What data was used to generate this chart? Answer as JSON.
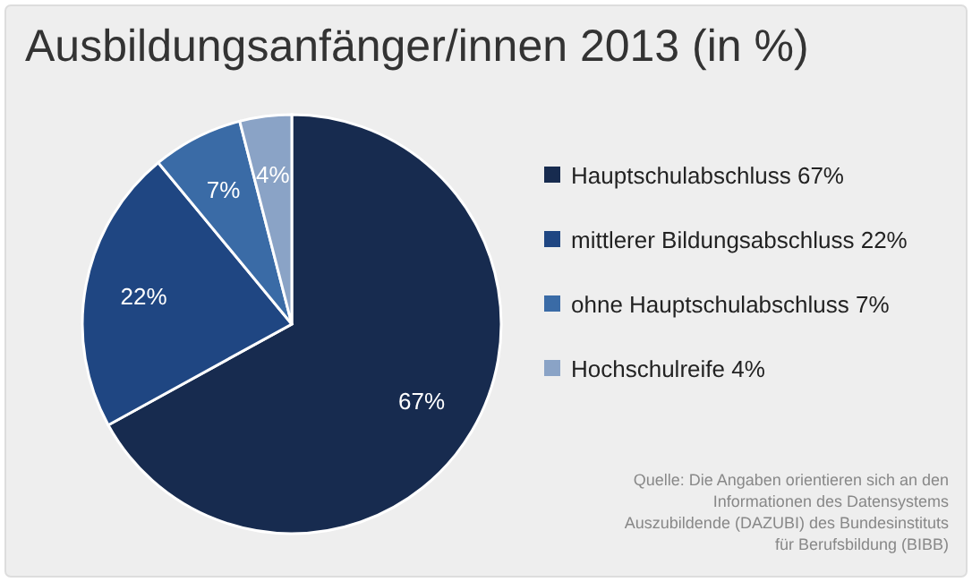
{
  "chart_data": {
    "type": "pie",
    "title": "Ausbildungsanfänger/innen 2013 (in %)",
    "categories": [
      "Hauptschulabschluss 67%",
      "mittlerer Bildungsabschluss 22%",
      "ohne Hauptschulabschluss 7%",
      "Hochschulreife 4%"
    ],
    "values": [
      67,
      22,
      7,
      4
    ],
    "colors": [
      "#172b4f",
      "#1f4682",
      "#3a6ba6",
      "#8aa3c6"
    ],
    "value_labels": [
      "67%",
      "22%",
      "7%",
      "4%"
    ],
    "legend": "right",
    "annotations": [
      "Quelle: Die Angaben orientieren sich an den Informationen des Datensystems Auszubildende (DAZUBI) des Bundesinstituts für Berufsbildung (BIBB)"
    ]
  }
}
